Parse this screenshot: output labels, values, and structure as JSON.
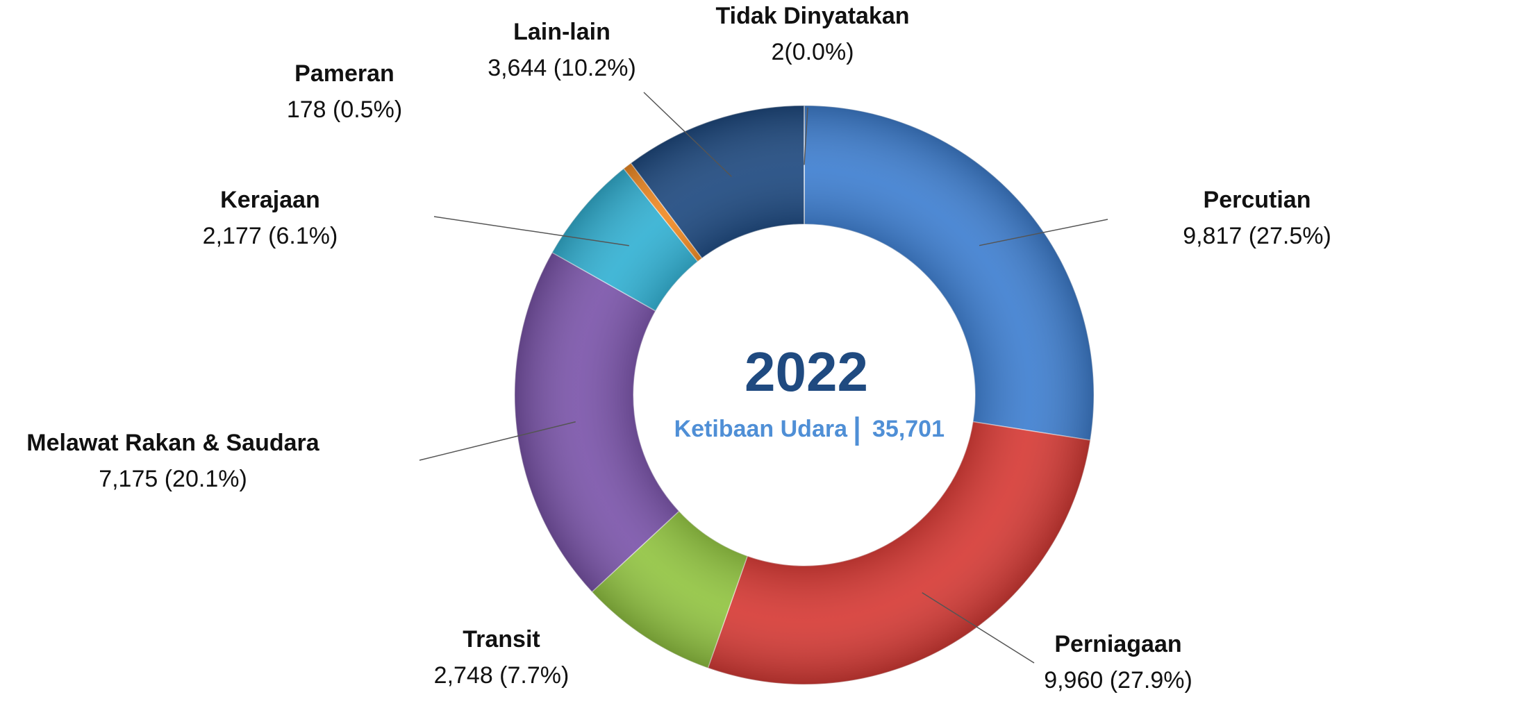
{
  "chart_data": {
    "type": "donut",
    "center_title": "2022",
    "center_label": "Ketibaan Udara",
    "total_label": "35,701",
    "categories": [
      "Percutian",
      "Perniagaan",
      "Transit",
      "Melawat Rakan & Saudara",
      "Kerajaan",
      "Pameran",
      "Lain-lain",
      "Tidak Dinyatakan"
    ],
    "values": [
      9817,
      9960,
      2748,
      7175,
      2177,
      178,
      3644,
      2
    ],
    "value_labels": [
      "9,817 (27.5%)",
      "9,960 (27.9%)",
      "2,748 (7.7%)",
      "7,175 (20.1%)",
      "2,177 (6.1%)",
      "178 (0.5%)",
      "3,644 (10.2%)",
      "2(0.0%)"
    ],
    "colors": [
      "#3f7fd0",
      "#d63b36",
      "#92c442",
      "#7b55aa",
      "#33b1d3",
      "#f08a24",
      "#1f4a80",
      "#1f4a80"
    ]
  }
}
